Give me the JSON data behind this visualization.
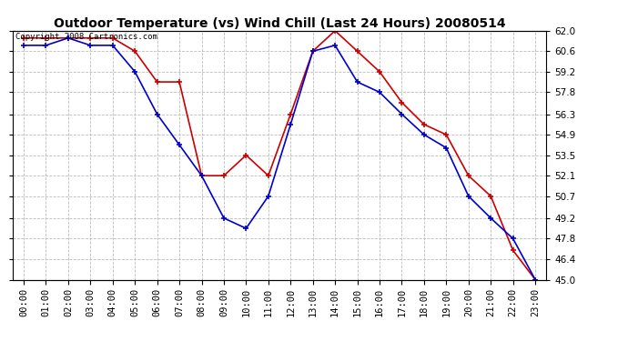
{
  "title": "Outdoor Temperature (vs) Wind Chill (Last 24 Hours) 20080514",
  "copyright": "Copyright 2008 Cartronics.com",
  "x_labels": [
    "00:00",
    "01:00",
    "02:00",
    "03:00",
    "04:00",
    "05:00",
    "06:00",
    "07:00",
    "08:00",
    "09:00",
    "10:00",
    "11:00",
    "12:00",
    "13:00",
    "14:00",
    "15:00",
    "16:00",
    "17:00",
    "18:00",
    "19:00",
    "20:00",
    "21:00",
    "22:00",
    "23:00"
  ],
  "temp_red": [
    61.5,
    61.5,
    61.5,
    61.5,
    61.5,
    60.6,
    58.5,
    58.5,
    52.1,
    52.1,
    53.5,
    52.1,
    56.3,
    60.6,
    62.0,
    60.6,
    59.2,
    57.1,
    55.6,
    54.9,
    52.1,
    50.7,
    47.0,
    45.0
  ],
  "temp_blue": [
    61.0,
    61.0,
    61.5,
    61.0,
    61.0,
    59.2,
    56.3,
    54.2,
    52.1,
    49.2,
    48.5,
    50.7,
    55.6,
    60.6,
    61.0,
    58.5,
    57.8,
    56.3,
    54.9,
    54.0,
    50.7,
    49.2,
    47.8,
    45.0
  ],
  "ylim": [
    45.0,
    62.0
  ],
  "yticks": [
    45.0,
    46.4,
    47.8,
    49.2,
    50.7,
    52.1,
    53.5,
    54.9,
    56.3,
    57.8,
    59.2,
    60.6,
    62.0
  ],
  "red_color": "#cc0000",
  "blue_color": "#0000cc",
  "grid_color": "#bbbbbb",
  "bg_color": "#ffffff",
  "title_fontsize": 10,
  "tick_fontsize": 7.5,
  "copyright_fontsize": 6.5
}
